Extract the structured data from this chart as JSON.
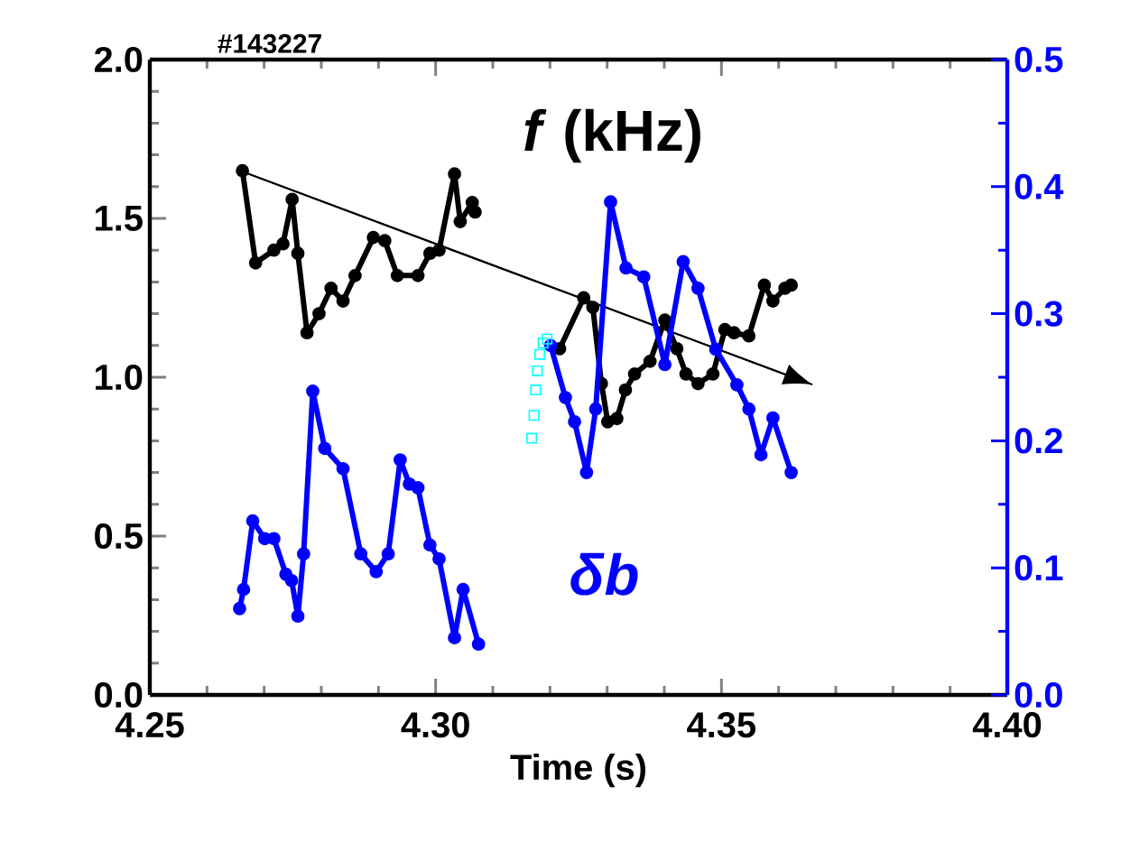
{
  "chart_data": {
    "type": "line",
    "title": "#143227",
    "xlabel": "Time (s)",
    "annotations": [
      "*f* (kHz)"
    ],
    "y2label": "δb",
    "xlim": [
      4.25,
      4.4
    ],
    "xticks": [
      {
        "value": 4.25,
        "label": "4.25"
      },
      {
        "value": 4.3,
        "label": "4.30"
      },
      {
        "value": 4.35,
        "label": "4.35"
      },
      {
        "value": 4.4,
        "label": "4.40"
      }
    ],
    "ylim": [
      0,
      2
    ],
    "yticks": [
      {
        "value": 0,
        "label": "0.0"
      },
      {
        "value": 0.5,
        "label": "0.5"
      },
      {
        "value": 1,
        "label": "1.0"
      },
      {
        "value": 1.5,
        "label": "1.5"
      },
      {
        "value": 2,
        "label": "2.0"
      }
    ],
    "y2lim": [
      0,
      0.5
    ],
    "y2ticks": [
      {
        "value": 0,
        "label": "0.0"
      },
      {
        "value": 0.1,
        "label": "0.1"
      },
      {
        "value": 0.2,
        "label": "0.2"
      },
      {
        "value": 0.3,
        "label": "0.3"
      },
      {
        "value": 0.4,
        "label": "0.4"
      },
      {
        "value": 0.5,
        "label": "0.5"
      }
    ],
    "marker": "circle",
    "series": [
      {
        "color": "#000000",
        "x": [
          4.2662,
          4.2685,
          4.2717,
          4.2733,
          4.2749,
          4.2759,
          4.2775,
          4.2796,
          4.2817,
          4.2838,
          4.2859,
          4.2891,
          4.2911,
          4.2933,
          4.2969,
          4.299,
          4.3006,
          4.3033,
          4.3043,
          4.3064,
          4.3069
        ],
        "values": [
          1.65,
          1.36,
          1.4,
          1.42,
          1.56,
          1.39,
          1.14,
          1.2,
          1.28,
          1.24,
          1.32,
          1.44,
          1.43,
          1.32,
          1.32,
          1.39,
          1.4,
          1.64,
          1.49,
          1.55,
          1.52
        ]
      },
      {
        "color": "#000000",
        "x": [
          4.3217,
          4.3259,
          4.3275,
          4.329,
          4.3301,
          4.3317,
          4.3332,
          4.3348,
          4.3375,
          4.3401,
          4.3422,
          4.3438,
          4.3459,
          4.3485,
          4.3506,
          4.3522,
          4.3548,
          4.3575,
          4.359,
          4.3611,
          4.3622
        ],
        "values": [
          1.09,
          1.25,
          1.22,
          0.98,
          0.86,
          0.87,
          0.96,
          1.01,
          1.05,
          1.18,
          1.09,
          1.01,
          0.98,
          1.01,
          1.15,
          1.14,
          1.13,
          1.29,
          1.24,
          1.28,
          1.29
        ]
      },
      {
        "color": "#0000ff",
        "axis": "y2",
        "x": [
          4.2657,
          4.2664,
          4.268,
          4.2701,
          4.2717,
          4.2738,
          4.2748,
          4.2759,
          4.2769,
          4.2785,
          4.2806,
          4.2838,
          4.2869,
          4.2896,
          4.2917,
          4.2938,
          4.2954,
          4.2969,
          4.299,
          4.3006,
          4.3033,
          4.3048,
          4.3075
        ],
        "values": [
          0.068,
          0.083,
          0.137,
          0.123,
          0.123,
          0.095,
          0.09,
          0.062,
          0.111,
          0.239,
          0.194,
          0.178,
          0.111,
          0.097,
          0.111,
          0.185,
          0.166,
          0.163,
          0.118,
          0.107,
          0.045,
          0.083,
          0.04
        ]
      },
      {
        "color": "#0000ff",
        "axis": "y2",
        "x": [
          4.3201,
          4.3227,
          4.3243,
          4.3264,
          4.328,
          4.3306,
          4.3333,
          4.3364,
          4.3401,
          4.3433,
          4.3459,
          4.349,
          4.3527,
          4.3548,
          4.3569,
          4.359,
          4.3622
        ],
        "values": [
          0.275,
          0.234,
          0.215,
          0.175,
          0.225,
          0.388,
          0.336,
          0.329,
          0.26,
          0.341,
          0.32,
          0.272,
          0.244,
          0.225,
          0.189,
          0.218,
          0.175
        ]
      },
      {
        "color": "#00ffff",
        "axis": "y2",
        "type": "scatter",
        "marker": "square",
        "x": [
          4.3168,
          4.3172,
          4.3175,
          4.3178,
          4.3182,
          4.3188,
          4.3195
        ],
        "values": [
          0.202,
          0.22,
          0.24,
          0.255,
          0.268,
          0.277,
          0.28
        ]
      },
      {
        "color": "#000000",
        "marker": "none",
        "x": [
          4.2661,
          4.3659
        ],
        "values": [
          1.648,
          0.977
        ]
      }
    ]
  }
}
